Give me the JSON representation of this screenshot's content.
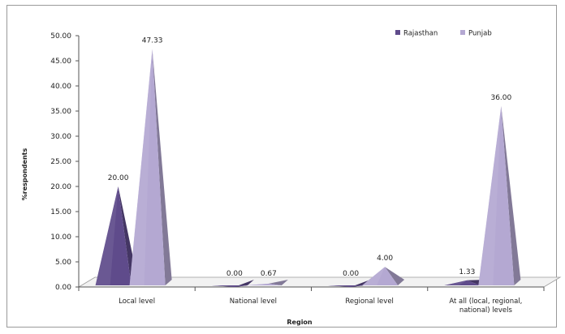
{
  "chart_data": {
    "type": "bar",
    "style": "3d-pyramid",
    "categories": [
      [
        "Local level"
      ],
      [
        "National level"
      ],
      [
        "Regional level"
      ],
      [
        "At all (local, regional,",
        "national) levels"
      ]
    ],
    "series": [
      {
        "name": "Rajasthan",
        "values": [
          20.0,
          0.0,
          0.0,
          1.33
        ],
        "labels": [
          "20.00",
          "0.00",
          "0.00",
          "1.33"
        ],
        "color": "#5f4b8b"
      },
      {
        "name": "Punjab",
        "values": [
          47.33,
          0.67,
          4.0,
          36.0
        ],
        "labels": [
          "47.33",
          "0.67",
          "4.00",
          "36.00"
        ],
        "color": "#b4a8d2"
      }
    ],
    "xlabel": "Region",
    "ylabel": "%respondents",
    "ylim": [
      0,
      50
    ],
    "yticks": [
      "0.00",
      "5.00",
      "10.00",
      "15.00",
      "20.00",
      "25.00",
      "30.00",
      "35.00",
      "40.00",
      "45.00",
      "50.00"
    ],
    "grid": false,
    "legend": "top-right"
  }
}
